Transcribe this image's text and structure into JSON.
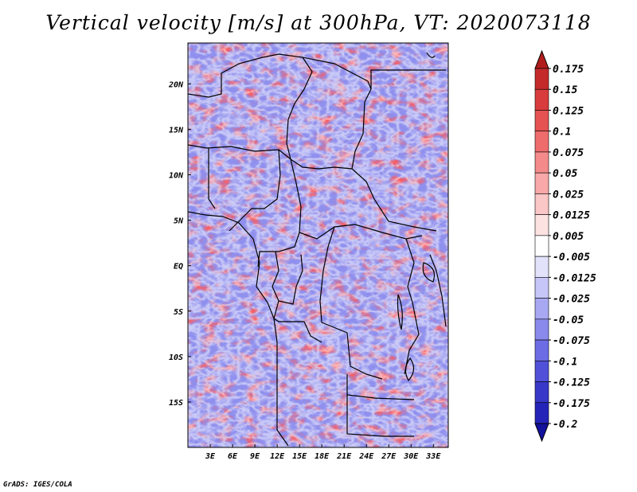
{
  "title": "Vertical velocity [m/s] at 300hPa, VT: 2020073118",
  "credit": "GrADS: IGES/COLA",
  "chart_data": {
    "type": "heatmap",
    "title": "Vertical velocity [m/s] at 300hPa, VT: 2020073118",
    "variable": "Vertical velocity",
    "units": "m/s",
    "level": "300hPa",
    "valid_time": "2020073118",
    "x_range": [
      0,
      35
    ],
    "y_range": [
      -20,
      24.5
    ],
    "xticks": [
      {
        "value": 3,
        "label": "3E"
      },
      {
        "value": 6,
        "label": "6E"
      },
      {
        "value": 9,
        "label": "9E"
      },
      {
        "value": 12,
        "label": "12E"
      },
      {
        "value": 15,
        "label": "15E"
      },
      {
        "value": 18,
        "label": "18E"
      },
      {
        "value": 21,
        "label": "21E"
      },
      {
        "value": 24,
        "label": "24E"
      },
      {
        "value": 27,
        "label": "27E"
      },
      {
        "value": 30,
        "label": "30E"
      },
      {
        "value": 33,
        "label": "33E"
      }
    ],
    "yticks": [
      {
        "value": 20,
        "label": "20N"
      },
      {
        "value": 15,
        "label": "15N"
      },
      {
        "value": 10,
        "label": "10N"
      },
      {
        "value": 5,
        "label": "5N"
      },
      {
        "value": 0,
        "label": "EQ"
      },
      {
        "value": -5,
        "label": "5S"
      },
      {
        "value": -10,
        "label": "10S"
      },
      {
        "value": -15,
        "label": "15S"
      }
    ],
    "colorbar": {
      "labels": [
        "0.175",
        "0.15",
        "0.125",
        "0.1",
        "0.075",
        "0.05",
        "0.025",
        "0.0125",
        "0.005",
        "-0.005",
        "-0.0125",
        "-0.025",
        "-0.05",
        "-0.075",
        "-0.1",
        "-0.125",
        "-0.175",
        "-0.2"
      ],
      "colors": [
        "#b01c1c",
        "#c42a2a",
        "#d83c3c",
        "#e55252",
        "#ee6c6c",
        "#f48a8a",
        "#f8a8a8",
        "#fbc6c6",
        "#fde2e2",
        "#ffffff",
        "#e2e2fb",
        "#c6c6f8",
        "#a8a8f2",
        "#8a8aec",
        "#6c6ce4",
        "#5050d8",
        "#3838c8",
        "#2424b8",
        "#12129c"
      ]
    }
  }
}
